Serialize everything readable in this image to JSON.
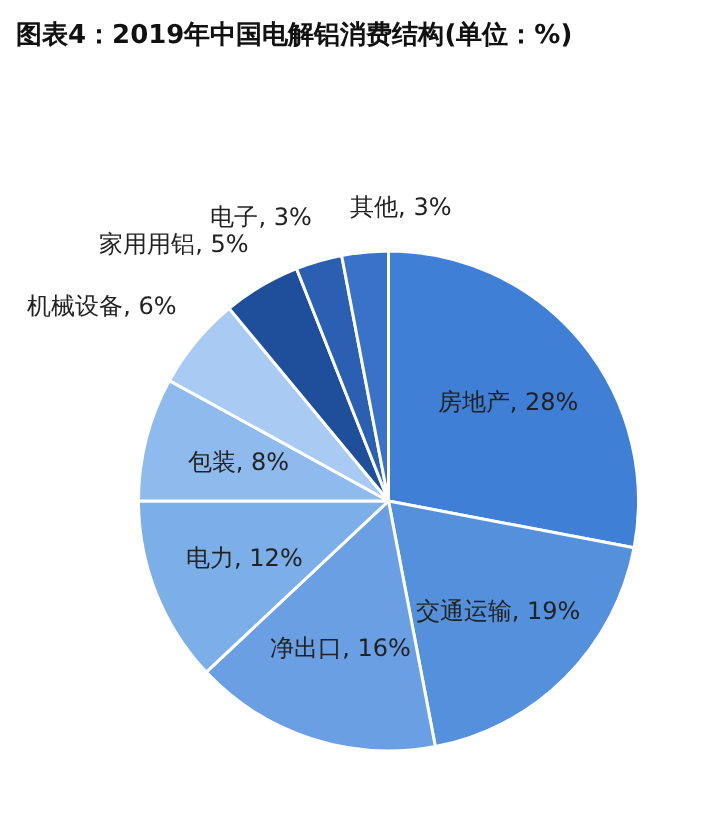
{
  "chart_data": {
    "type": "pie",
    "title": "图表4：2019年中国电解铝消费结构(单位：%)",
    "categories": [
      "房地产",
      "交通运输",
      "净出口",
      "电力",
      "包装",
      "机械设备",
      "家用用铝",
      "电子",
      "其他"
    ],
    "values": [
      28,
      19,
      16,
      12,
      8,
      6,
      5,
      3,
      3
    ],
    "value_labels": [
      "28%",
      "19%",
      "16%",
      "12%",
      "8%",
      "6%",
      "5%",
      "3%",
      "3%"
    ],
    "colors": [
      "#3f7fd6",
      "#5590dd",
      "#6a9fe3",
      "#7caee8",
      "#8fbaed",
      "#a9cbf3",
      "#1f4e9a",
      "#2b5fb2",
      "#3a72c9"
    ]
  }
}
